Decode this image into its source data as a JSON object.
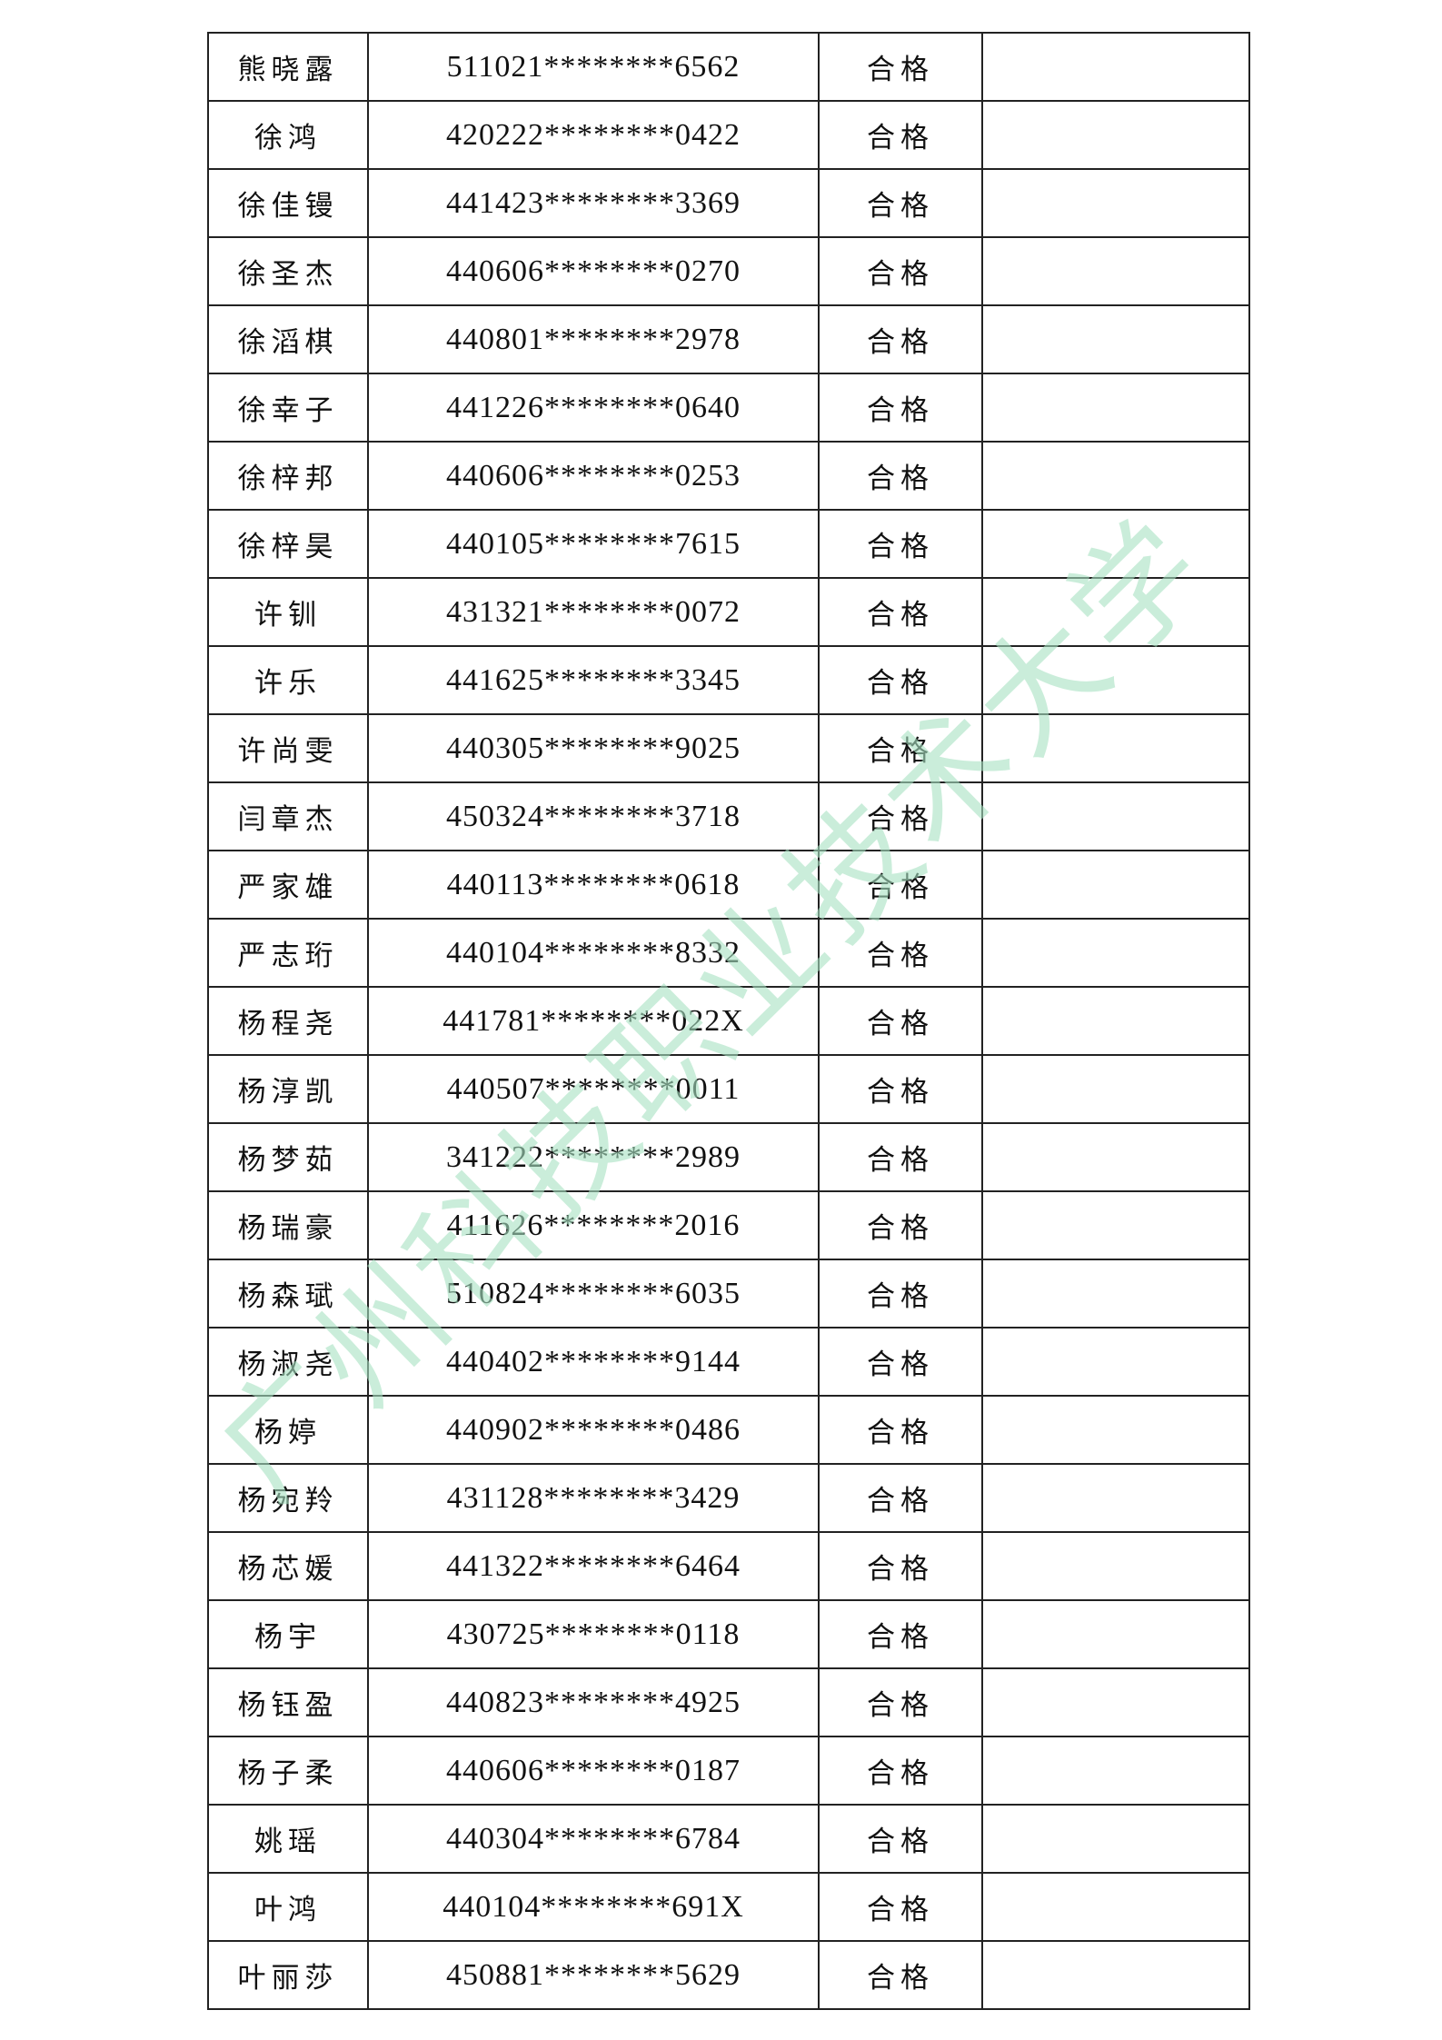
{
  "rows": [
    {
      "name": "熊晓露",
      "id": "511021********6562",
      "result": "合格",
      "note": ""
    },
    {
      "name": "徐鸿",
      "id": "420222********0422",
      "result": "合格",
      "note": ""
    },
    {
      "name": "徐佳镘",
      "id": "441423********3369",
      "result": "合格",
      "note": ""
    },
    {
      "name": "徐圣杰",
      "id": "440606********0270",
      "result": "合格",
      "note": ""
    },
    {
      "name": "徐滔棋",
      "id": "440801********2978",
      "result": "合格",
      "note": ""
    },
    {
      "name": "徐幸子",
      "id": "441226********0640",
      "result": "合格",
      "note": ""
    },
    {
      "name": "徐梓邦",
      "id": "440606********0253",
      "result": "合格",
      "note": ""
    },
    {
      "name": "徐梓昊",
      "id": "440105********7615",
      "result": "合格",
      "note": ""
    },
    {
      "name": "许钏",
      "id": "431321********0072",
      "result": "合格",
      "note": ""
    },
    {
      "name": "许乐",
      "id": "441625********3345",
      "result": "合格",
      "note": ""
    },
    {
      "name": "许尚雯",
      "id": "440305********9025",
      "result": "合格",
      "note": ""
    },
    {
      "name": "闫章杰",
      "id": "450324********3718",
      "result": "合格",
      "note": ""
    },
    {
      "name": "严家雄",
      "id": "440113********0618",
      "result": "合格",
      "note": ""
    },
    {
      "name": "严志珩",
      "id": "440104********8332",
      "result": "合格",
      "note": ""
    },
    {
      "name": "杨程尧",
      "id": "441781********022X",
      "result": "合格",
      "note": ""
    },
    {
      "name": "杨淳凯",
      "id": "440507********0011",
      "result": "合格",
      "note": ""
    },
    {
      "name": "杨梦茹",
      "id": "341222********2989",
      "result": "合格",
      "note": ""
    },
    {
      "name": "杨瑞豪",
      "id": "411626********2016",
      "result": "合格",
      "note": ""
    },
    {
      "name": "杨森珷",
      "id": "510824********6035",
      "result": "合格",
      "note": ""
    },
    {
      "name": "杨淑尧",
      "id": "440402********9144",
      "result": "合格",
      "note": ""
    },
    {
      "name": "杨婷",
      "id": "440902********0486",
      "result": "合格",
      "note": ""
    },
    {
      "name": "杨宛羚",
      "id": "431128********3429",
      "result": "合格",
      "note": ""
    },
    {
      "name": "杨芯媛",
      "id": "441322********6464",
      "result": "合格",
      "note": ""
    },
    {
      "name": "杨宇",
      "id": "430725********0118",
      "result": "合格",
      "note": ""
    },
    {
      "name": "杨钰盈",
      "id": "440823********4925",
      "result": "合格",
      "note": ""
    },
    {
      "name": "杨子柔",
      "id": "440606********0187",
      "result": "合格",
      "note": ""
    },
    {
      "name": "姚瑶",
      "id": "440304********6784",
      "result": "合格",
      "note": ""
    },
    {
      "name": "叶鸿",
      "id": "440104********691X",
      "result": "合格",
      "note": ""
    },
    {
      "name": "叶丽莎",
      "id": "450881********5629",
      "result": "合格",
      "note": ""
    }
  ],
  "watermark": {
    "text": "广州科技职业技术大学",
    "color": "#a8e2c2"
  }
}
